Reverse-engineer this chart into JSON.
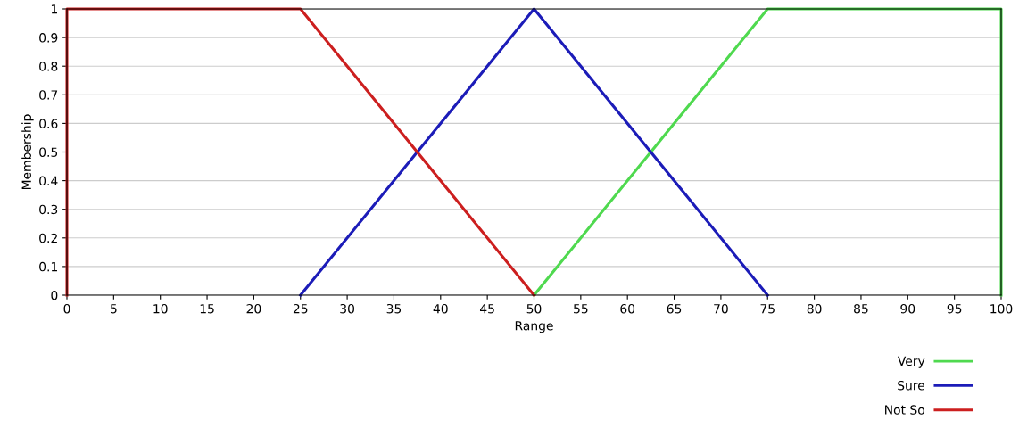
{
  "chart_data": {
    "type": "line",
    "xlabel": "Range",
    "ylabel": "Membership",
    "xlim": [
      0,
      100
    ],
    "ylim": [
      0,
      1
    ],
    "xticks": [
      0,
      5,
      10,
      15,
      20,
      25,
      30,
      35,
      40,
      45,
      50,
      55,
      60,
      65,
      70,
      75,
      80,
      85,
      90,
      95,
      100
    ],
    "yticks": [
      0,
      0.1,
      0.2,
      0.3,
      0.4,
      0.5,
      0.6,
      0.7,
      0.8,
      0.9,
      1
    ],
    "grid": "y",
    "legend": "bottom right",
    "marker": "none",
    "line_style": "solid",
    "series": [
      {
        "name": "Very",
        "color": "#4fd94f",
        "x": [
          50,
          75,
          100,
          100
        ],
        "values": [
          0,
          1,
          1,
          0
        ]
      },
      {
        "name": "Sure",
        "color": "#1c1cb8",
        "x": [
          25,
          50,
          75
        ],
        "values": [
          0,
          1,
          0
        ]
      },
      {
        "name": "Not So",
        "color": "#cc1f1f",
        "x": [
          0,
          0,
          25,
          50
        ],
        "values": [
          0,
          1,
          1,
          0
        ]
      }
    ]
  }
}
